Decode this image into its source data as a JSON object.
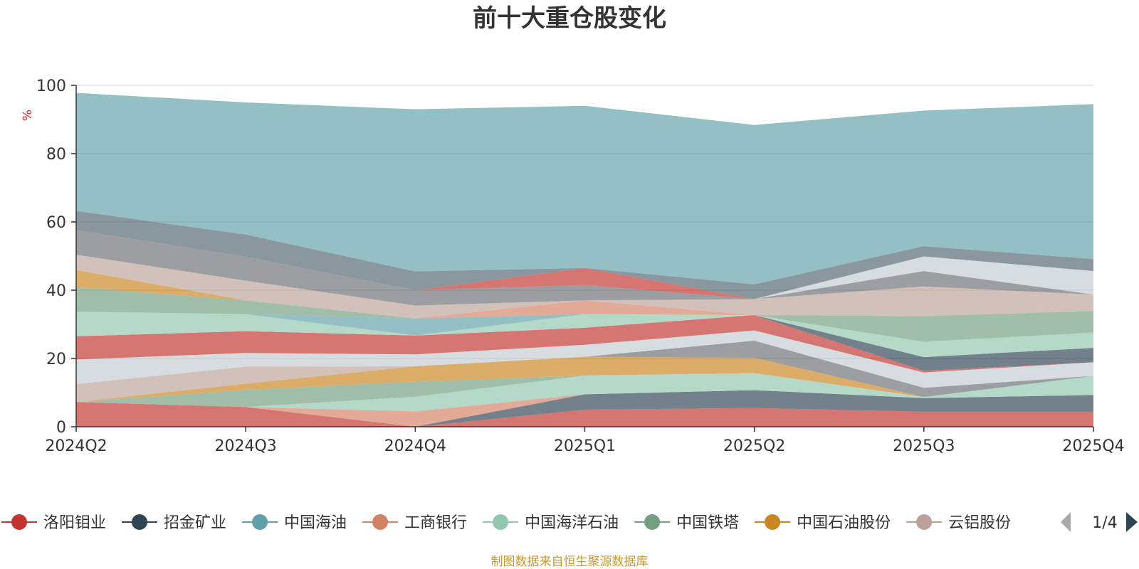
{
  "chart_data": {
    "type": "area",
    "stacked": true,
    "title": "前十大重仓股变化",
    "y_unit": "%",
    "ylim": [
      0,
      100
    ],
    "y_ticks": [
      0,
      20,
      40,
      60,
      80,
      100
    ],
    "grid": true,
    "categories": [
      "2024Q2",
      "2024Q3",
      "2024Q4",
      "2025Q1",
      "2025Q2",
      "2025Q3",
      "2025Q4"
    ],
    "series": [
      {
        "name": "洛阳钼业",
        "color": "#c23531",
        "values": [
          7.2,
          5.8,
          0.0,
          5.0,
          5.5,
          4.4,
          4.4
        ]
      },
      {
        "name": "招金矿业",
        "color": "#2f4554",
        "values": [
          0.0,
          0.0,
          0.0,
          4.5,
          5.2,
          4.0,
          4.9
        ]
      },
      {
        "name": "中国海油",
        "color": "#61a0a8",
        "values": [
          0.0,
          0.0,
          0.0,
          0.0,
          0.0,
          0.0,
          0.0
        ]
      },
      {
        "name": "工商银行",
        "color": "#d48265",
        "values": [
          0.0,
          0.0,
          4.5,
          0.0,
          0.0,
          0.0,
          0.0
        ]
      },
      {
        "name": "中国海洋石油",
        "color": "#91c7ae",
        "values": [
          0.0,
          0.0,
          4.3,
          5.5,
          5.0,
          0.3,
          5.6
        ]
      },
      {
        "name": "中国铁塔",
        "color": "#749f83",
        "values": [
          0.0,
          5.0,
          4.4,
          0.0,
          0.0,
          0.0,
          0.0
        ]
      },
      {
        "name": "中国石油股份",
        "color": "#ca8622",
        "values": [
          0.0,
          1.8,
          4.5,
          5.5,
          4.5,
          0.0,
          0.0
        ]
      },
      {
        "name": "云铝股份",
        "color": "#bda29a",
        "values": [
          5.3,
          5.0,
          0.0,
          0.0,
          0.0,
          0.0,
          0.0
        ]
      },
      {
        "name": "",
        "color": "#6e7074",
        "values": [
          0.0,
          0.0,
          0.0,
          0.0,
          5.0,
          2.7,
          0.0
        ]
      },
      {
        "name": "",
        "color": "#c4ccd3",
        "values": [
          7.2,
          4.0,
          3.5,
          3.5,
          3.0,
          4.5,
          4.0
        ]
      },
      {
        "name": "",
        "color": "#c23531",
        "values": [
          6.8,
          6.4,
          5.5,
          5.0,
          4.5,
          0.5,
          0.0
        ]
      },
      {
        "name": "",
        "color": "#2f4554",
        "values": [
          0.0,
          0.0,
          0.0,
          0.0,
          0.0,
          4.0,
          4.2
        ]
      },
      {
        "name": "",
        "color": "#91c7ae",
        "values": [
          7.2,
          5.0,
          0.0,
          4.0,
          0.0,
          4.5,
          4.5
        ]
      },
      {
        "name": "",
        "color": "#61a0a8",
        "values": [
          0.0,
          0.0,
          5.0,
          0.0,
          0.0,
          0.0,
          0.0
        ]
      },
      {
        "name": "",
        "color": "#d48265",
        "values": [
          0.0,
          0.0,
          0.0,
          4.0,
          0.0,
          0.0,
          0.0
        ]
      },
      {
        "name": "",
        "color": "#749f83",
        "values": [
          7.2,
          4.0,
          0.0,
          0.0,
          0.0,
          7.5,
          6.3
        ]
      },
      {
        "name": "",
        "color": "#ca8622",
        "values": [
          5.0,
          0.0,
          0.0,
          0.0,
          0.0,
          0.0,
          0.0
        ]
      },
      {
        "name": "",
        "color": "#bda29a",
        "values": [
          4.5,
          5.8,
          3.8,
          0.0,
          4.7,
          8.7,
          4.8
        ]
      },
      {
        "name": "",
        "color": "#6e7074",
        "values": [
          7.2,
          7.0,
          4.5,
          4.5,
          0.0,
          4.5,
          0.0
        ]
      },
      {
        "name": "",
        "color": "#c4ccd3",
        "values": [
          0.0,
          0.0,
          0.0,
          0.0,
          0.0,
          4.3,
          6.9
        ]
      },
      {
        "name": "",
        "color": "#c23531",
        "values": [
          0.0,
          0.0,
          0.0,
          5.0,
          0.0,
          0.0,
          0.0
        ]
      },
      {
        "name": "",
        "color": "#546570",
        "values": [
          5.6,
          6.5,
          5.5,
          0.0,
          4.3,
          3.0,
          3.5
        ]
      },
      {
        "name": "",
        "color": "#61a0a8",
        "values": [
          34.6,
          38.7,
          47.5,
          47.5,
          46.7,
          39.7,
          45.4
        ]
      }
    ],
    "legend": {
      "position": "bottom",
      "page_label": "1/4",
      "visible_items": [
        "洛阳钼业",
        "招金矿业",
        "中国海油",
        "工商银行",
        "中国海洋石油",
        "中国铁塔",
        "中国石油股份",
        "云铝股份"
      ]
    }
  },
  "footer": {
    "source": "制图数据来自恒生聚源数据库"
  },
  "icons": {
    "prev_page": "triangle-left-icon",
    "next_page": "triangle-right-icon"
  }
}
